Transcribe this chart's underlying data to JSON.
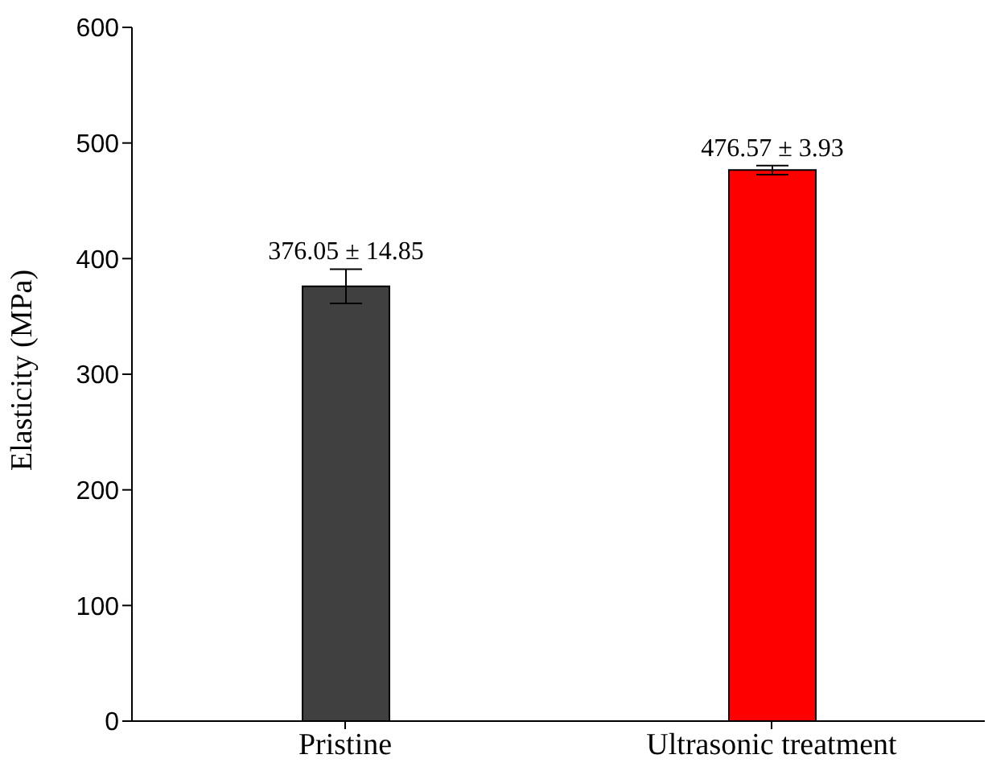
{
  "chart_data": {
    "type": "bar",
    "ylabel": "Elasticity (MPa)",
    "categories": [
      "Pristine",
      "Ultrasonic treatment"
    ],
    "values": [
      376.05,
      476.57
    ],
    "colors": [
      "#404040",
      "#ff0000"
    ],
    "errors": [
      14.85,
      3.93
    ],
    "value_labels": [
      "376.05 ± 14.85",
      "476.57 ± 3.93"
    ],
    "ylim": [
      0,
      600
    ],
    "yticks": [
      0,
      100,
      200,
      300,
      400,
      500,
      600
    ],
    "grid": false,
    "legend": false
  }
}
